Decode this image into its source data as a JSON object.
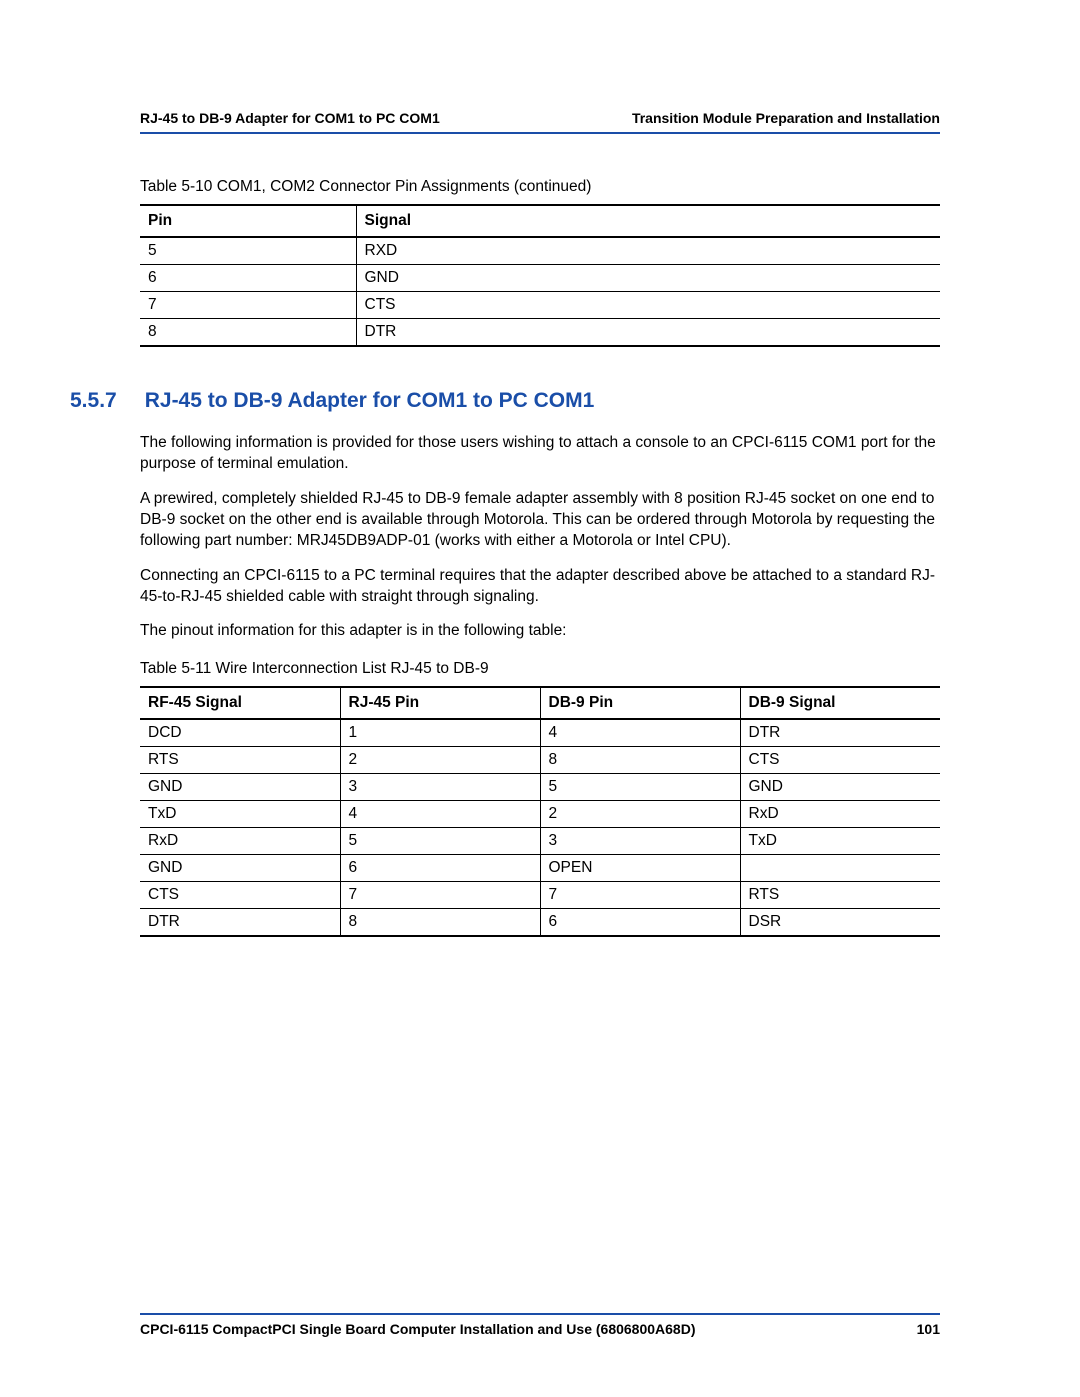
{
  "header": {
    "left": "RJ-45 to DB-9 Adapter for COM1 to PC COM1",
    "right": "Transition Module Preparation and Installation"
  },
  "table1": {
    "caption": "Table 5-10 COM1, COM2 Connector Pin Assignments (continued)",
    "columns": [
      "Pin",
      "Signal"
    ],
    "rows": [
      [
        "5",
        "RXD"
      ],
      [
        "6",
        "GND"
      ],
      [
        "7",
        "CTS"
      ],
      [
        "8",
        "DTR"
      ]
    ],
    "col_widths": [
      "27%",
      "73%"
    ]
  },
  "section": {
    "number": "5.5.7",
    "title": "RJ-45 to DB-9 Adapter for COM1 to PC COM1"
  },
  "paragraphs": {
    "p1": "The following information is provided for those users wishing to attach a console to an CPCI-6115 COM1 port for the purpose of terminal emulation.",
    "p2": "A prewired, completely shielded RJ-45 to DB-9 female adapter assembly with 8 position RJ-45 socket on one end to DB-9 socket on the other end is available through Motorola. This can be ordered through Motorola by requesting the following part number: MRJ45DB9ADP-01 (works with either a Motorola or Intel CPU).",
    "p3": "Connecting an CPCI-6115 to a PC terminal requires that the adapter described above be attached to a standard RJ-45-to-RJ-45 shielded cable with straight through signaling.",
    "p4": "The pinout information for this adapter is in the following table:"
  },
  "table2": {
    "caption": "Table 5-11 Wire Interconnection List RJ-45 to DB-9",
    "columns": [
      "RF-45 Signal",
      "RJ-45 Pin",
      "DB-9 Pin",
      "DB-9 Signal"
    ],
    "rows": [
      [
        "DCD",
        "1",
        "4",
        "DTR"
      ],
      [
        "RTS",
        "2",
        "8",
        "CTS"
      ],
      [
        "GND",
        "3",
        "5",
        "GND"
      ],
      [
        "TxD",
        "4",
        "2",
        "RxD"
      ],
      [
        "RxD",
        "5",
        "3",
        "TxD"
      ],
      [
        "GND",
        "6",
        "OPEN",
        ""
      ],
      [
        "CTS",
        "7",
        "7",
        "RTS"
      ],
      [
        "DTR",
        "8",
        "6",
        "DSR"
      ]
    ],
    "col_widths": [
      "25%",
      "25%",
      "25%",
      "25%"
    ]
  },
  "footer": {
    "text": "CPCI-6115 CompactPCI Single Board Computer Installation and Use (6806800A68D)",
    "page": "101"
  },
  "colors": {
    "accent": "#1a4ea8",
    "text": "#000000",
    "background": "#ffffff"
  }
}
